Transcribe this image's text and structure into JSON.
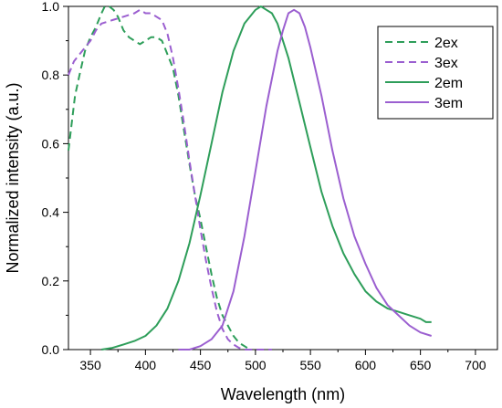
{
  "chart_data": {
    "type": "line",
    "xlabel": "Wavelength (nm)",
    "ylabel": "Normalized intensity (a.u.)",
    "xlim": [
      330,
      720
    ],
    "ylim": [
      0,
      1.0
    ],
    "x_ticks": [
      "350",
      "400",
      "450",
      "500",
      "550",
      "600",
      "650",
      "700"
    ],
    "y_ticks": [
      "0.0",
      "0.2",
      "0.4",
      "0.6",
      "0.8",
      "1.0"
    ],
    "grid": false,
    "legend_position": "top-right",
    "series": [
      {
        "name": "2ex",
        "color": "#2e9e5a",
        "style": "dashed",
        "points": [
          [
            330,
            0.58
          ],
          [
            333,
            0.66
          ],
          [
            336,
            0.74
          ],
          [
            340,
            0.8
          ],
          [
            345,
            0.87
          ],
          [
            350,
            0.91
          ],
          [
            355,
            0.94
          ],
          [
            360,
            0.98
          ],
          [
            363,
            1.0
          ],
          [
            367,
            1.0
          ],
          [
            371,
            0.99
          ],
          [
            375,
            0.97
          ],
          [
            380,
            0.93
          ],
          [
            385,
            0.91
          ],
          [
            390,
            0.9
          ],
          [
            395,
            0.89
          ],
          [
            400,
            0.9
          ],
          [
            405,
            0.91
          ],
          [
            410,
            0.91
          ],
          [
            415,
            0.9
          ],
          [
            420,
            0.86
          ],
          [
            425,
            0.82
          ],
          [
            430,
            0.74
          ],
          [
            435,
            0.64
          ],
          [
            440,
            0.54
          ],
          [
            445,
            0.45
          ],
          [
            450,
            0.38
          ],
          [
            455,
            0.3
          ],
          [
            460,
            0.22
          ],
          [
            465,
            0.15
          ],
          [
            470,
            0.1
          ],
          [
            475,
            0.07
          ],
          [
            480,
            0.04
          ],
          [
            485,
            0.02
          ],
          [
            490,
            0.01
          ],
          [
            495,
            0.0
          ]
        ]
      },
      {
        "name": "3ex",
        "color": "#9b5fd0",
        "style": "dashed",
        "points": [
          [
            330,
            0.8
          ],
          [
            335,
            0.84
          ],
          [
            340,
            0.86
          ],
          [
            345,
            0.88
          ],
          [
            350,
            0.9
          ],
          [
            355,
            0.93
          ],
          [
            360,
            0.95
          ],
          [
            370,
            0.96
          ],
          [
            380,
            0.97
          ],
          [
            390,
            0.98
          ],
          [
            395,
            0.99
          ],
          [
            400,
            0.98
          ],
          [
            405,
            0.98
          ],
          [
            410,
            0.97
          ],
          [
            415,
            0.96
          ],
          [
            420,
            0.92
          ],
          [
            425,
            0.85
          ],
          [
            430,
            0.76
          ],
          [
            435,
            0.66
          ],
          [
            440,
            0.55
          ],
          [
            445,
            0.45
          ],
          [
            450,
            0.35
          ],
          [
            455,
            0.26
          ],
          [
            460,
            0.18
          ],
          [
            465,
            0.11
          ],
          [
            470,
            0.06
          ],
          [
            475,
            0.03
          ],
          [
            480,
            0.015
          ],
          [
            485,
            0.005
          ],
          [
            490,
            0.0
          ],
          [
            515,
            0.0
          ]
        ]
      },
      {
        "name": "2em",
        "color": "#2e9e5a",
        "style": "solid",
        "points": [
          [
            360,
            0.0
          ],
          [
            370,
            0.005
          ],
          [
            380,
            0.015
          ],
          [
            390,
            0.025
          ],
          [
            400,
            0.04
          ],
          [
            410,
            0.07
          ],
          [
            420,
            0.12
          ],
          [
            430,
            0.2
          ],
          [
            440,
            0.31
          ],
          [
            450,
            0.45
          ],
          [
            460,
            0.6
          ],
          [
            470,
            0.75
          ],
          [
            480,
            0.87
          ],
          [
            490,
            0.95
          ],
          [
            500,
            0.99
          ],
          [
            505,
            1.0
          ],
          [
            510,
            0.99
          ],
          [
            515,
            0.98
          ],
          [
            520,
            0.95
          ],
          [
            530,
            0.85
          ],
          [
            540,
            0.72
          ],
          [
            550,
            0.59
          ],
          [
            560,
            0.46
          ],
          [
            570,
            0.36
          ],
          [
            580,
            0.28
          ],
          [
            590,
            0.22
          ],
          [
            600,
            0.17
          ],
          [
            610,
            0.14
          ],
          [
            620,
            0.12
          ],
          [
            630,
            0.11
          ],
          [
            640,
            0.1
          ],
          [
            650,
            0.09
          ],
          [
            655,
            0.08
          ],
          [
            660,
            0.08
          ]
        ]
      },
      {
        "name": "3em",
        "color": "#9b5fd0",
        "style": "solid",
        "points": [
          [
            430,
            0.0
          ],
          [
            440,
            0.0
          ],
          [
            450,
            0.01
          ],
          [
            460,
            0.03
          ],
          [
            470,
            0.07
          ],
          [
            480,
            0.17
          ],
          [
            490,
            0.33
          ],
          [
            500,
            0.52
          ],
          [
            510,
            0.71
          ],
          [
            520,
            0.87
          ],
          [
            525,
            0.93
          ],
          [
            530,
            0.98
          ],
          [
            535,
            0.99
          ],
          [
            540,
            0.98
          ],
          [
            545,
            0.94
          ],
          [
            550,
            0.88
          ],
          [
            560,
            0.74
          ],
          [
            570,
            0.58
          ],
          [
            580,
            0.44
          ],
          [
            590,
            0.33
          ],
          [
            600,
            0.25
          ],
          [
            610,
            0.18
          ],
          [
            620,
            0.13
          ],
          [
            630,
            0.1
          ],
          [
            640,
            0.07
          ],
          [
            650,
            0.05
          ],
          [
            660,
            0.04
          ]
        ]
      }
    ]
  }
}
